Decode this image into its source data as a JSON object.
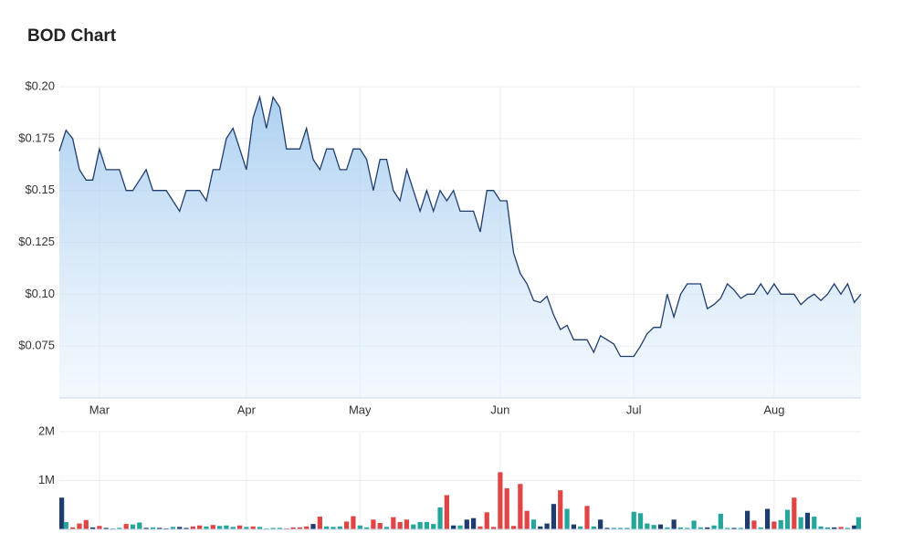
{
  "title": "BOD Chart",
  "chart_data": [
    {
      "type": "area",
      "values": [
        0.169,
        0.179,
        0.175,
        0.16,
        0.155,
        0.155,
        0.17,
        0.16,
        0.16,
        0.16,
        0.15,
        0.15,
        0.155,
        0.16,
        0.15,
        0.15,
        0.15,
        0.145,
        0.14,
        0.15,
        0.15,
        0.15,
        0.145,
        0.16,
        0.16,
        0.175,
        0.18,
        0.17,
        0.16,
        0.185,
        0.195,
        0.18,
        0.195,
        0.19,
        0.17,
        0.17,
        0.17,
        0.18,
        0.165,
        0.16,
        0.17,
        0.17,
        0.16,
        0.16,
        0.17,
        0.17,
        0.165,
        0.15,
        0.165,
        0.165,
        0.15,
        0.145,
        0.16,
        0.15,
        0.14,
        0.15,
        0.14,
        0.15,
        0.145,
        0.15,
        0.14,
        0.14,
        0.14,
        0.13,
        0.15,
        0.15,
        0.145,
        0.145,
        0.12,
        0.11,
        0.105,
        0.097,
        0.096,
        0.099,
        0.09,
        0.083,
        0.085,
        0.078,
        0.078,
        0.078,
        0.072,
        0.08,
        0.078,
        0.076,
        0.07,
        0.07,
        0.07,
        0.075,
        0.081,
        0.084,
        0.084,
        0.1,
        0.089,
        0.1,
        0.105,
        0.105,
        0.105,
        0.093,
        0.095,
        0.098,
        0.105,
        0.102,
        0.098,
        0.1,
        0.1,
        0.105,
        0.1,
        0.105,
        0.1,
        0.1,
        0.1,
        0.095,
        0.098,
        0.1,
        0.097,
        0.1,
        0.105,
        0.1,
        0.105,
        0.096,
        0.1
      ],
      "color": "#1f3c6e",
      "xlim": [
        0,
        120
      ],
      "xticks": [
        {
          "value": 6,
          "label": "Mar"
        },
        {
          "value": 28,
          "label": "Apr"
        },
        {
          "value": 45,
          "label": "May"
        },
        {
          "value": 66,
          "label": "Jun"
        },
        {
          "value": 86,
          "label": "Jul"
        },
        {
          "value": 107,
          "label": "Aug"
        }
      ],
      "ylim": [
        0.05,
        0.2
      ],
      "yticks": [
        {
          "value": 0.075,
          "label": "$0.075"
        },
        {
          "value": 0.1,
          "label": "$0.10"
        },
        {
          "value": 0.125,
          "label": "$0.125"
        },
        {
          "value": 0.15,
          "label": "$0.15"
        },
        {
          "value": 0.175,
          "label": "$0.175"
        },
        {
          "value": 0.2,
          "label": "$0.20"
        }
      ],
      "grid": true
    },
    {
      "type": "bar",
      "values": [
        650000,
        150000,
        40000,
        120000,
        190000,
        40000,
        70000,
        30000,
        20000,
        30000,
        110000,
        100000,
        140000,
        30000,
        40000,
        30000,
        20000,
        50000,
        50000,
        30000,
        60000,
        80000,
        60000,
        90000,
        70000,
        80000,
        50000,
        80000,
        50000,
        60000,
        50000,
        20000,
        30000,
        30000,
        20000,
        40000,
        40000,
        60000,
        110000,
        260000,
        60000,
        50000,
        60000,
        160000,
        270000,
        80000,
        40000,
        200000,
        130000,
        50000,
        250000,
        150000,
        200000,
        100000,
        150000,
        150000,
        110000,
        450000,
        700000,
        80000,
        80000,
        200000,
        230000,
        60000,
        350000,
        50000,
        1170000,
        840000,
        70000,
        930000,
        380000,
        200000,
        60000,
        120000,
        520000,
        800000,
        420000,
        100000,
        60000,
        480000,
        60000,
        200000,
        30000,
        30000,
        30000,
        30000,
        360000,
        330000,
        120000,
        90000,
        100000,
        40000,
        200000,
        40000,
        30000,
        180000,
        40000,
        40000,
        80000,
        320000,
        30000,
        30000,
        30000,
        380000,
        180000,
        40000,
        420000,
        160000,
        190000,
        400000,
        650000,
        250000,
        340000,
        260000,
        60000,
        40000,
        40000,
        50000,
        30000,
        80000,
        250000
      ],
      "colors": [
        "#1f3c6e",
        "#26a69a",
        "#e04545",
        "#e04545",
        "#e04545",
        "#1f3c6e",
        "#e04545",
        "#1f3c6e",
        "#26a69a",
        "#26a69a",
        "#e04545",
        "#26a69a",
        "#26a69a",
        "#1f3c6e",
        "#26a69a",
        "#1f3c6e",
        "#1f3c6e",
        "#26a69a",
        "#1f3c6e",
        "#1f3c6e",
        "#e04545",
        "#e04545",
        "#26a69a",
        "#e04545",
        "#26a69a",
        "#26a69a",
        "#26a69a",
        "#e04545",
        "#26a69a",
        "#e04545",
        "#26a69a",
        "#26a69a",
        "#26a69a",
        "#26a69a",
        "#e04545",
        "#e04545",
        "#e04545",
        "#e04545",
        "#1f3c6e",
        "#e04545",
        "#26a69a",
        "#26a69a",
        "#26a69a",
        "#e04545",
        "#e04545",
        "#26a69a",
        "#26a69a",
        "#e04545",
        "#e04545",
        "#26a69a",
        "#e04545",
        "#e04545",
        "#e04545",
        "#26a69a",
        "#26a69a",
        "#26a69a",
        "#26a69a",
        "#26a69a",
        "#e04545",
        "#1f3c6e",
        "#26a69a",
        "#1f3c6e",
        "#1f3c6e",
        "#e04545",
        "#e04545",
        "#e04545",
        "#e04545",
        "#e04545",
        "#e04545",
        "#e04545",
        "#e04545",
        "#26a69a",
        "#1f3c6e",
        "#1f3c6e",
        "#1f3c6e",
        "#e04545",
        "#26a69a",
        "#1f3c6e",
        "#26a69a",
        "#e04545",
        "#26a69a",
        "#1f3c6e",
        "#1f3c6e",
        "#26a69a",
        "#26a69a",
        "#26a69a",
        "#26a69a",
        "#26a69a",
        "#26a69a",
        "#26a69a",
        "#1f3c6e",
        "#26a69a",
        "#1f3c6e",
        "#26a69a",
        "#26a69a",
        "#26a69a",
        "#26a69a",
        "#1f3c6e",
        "#26a69a",
        "#26a69a",
        "#26a69a",
        "#1f3c6e",
        "#26a69a",
        "#1f3c6e",
        "#e04545",
        "#26a69a",
        "#1f3c6e",
        "#e04545",
        "#26a69a",
        "#26a69a",
        "#e04545",
        "#26a69a",
        "#1f3c6e",
        "#26a69a",
        "#26a69a",
        "#26a69a",
        "#1f3c6e",
        "#e04545",
        "#26a69a",
        "#1f3c6e",
        "#26a69a"
      ],
      "xlim": [
        0,
        120
      ],
      "ylim": [
        0,
        2000000
      ],
      "yticks": [
        {
          "value": 1000000,
          "label": "1M"
        },
        {
          "value": 2000000,
          "label": "2M"
        }
      ],
      "grid": true
    }
  ]
}
